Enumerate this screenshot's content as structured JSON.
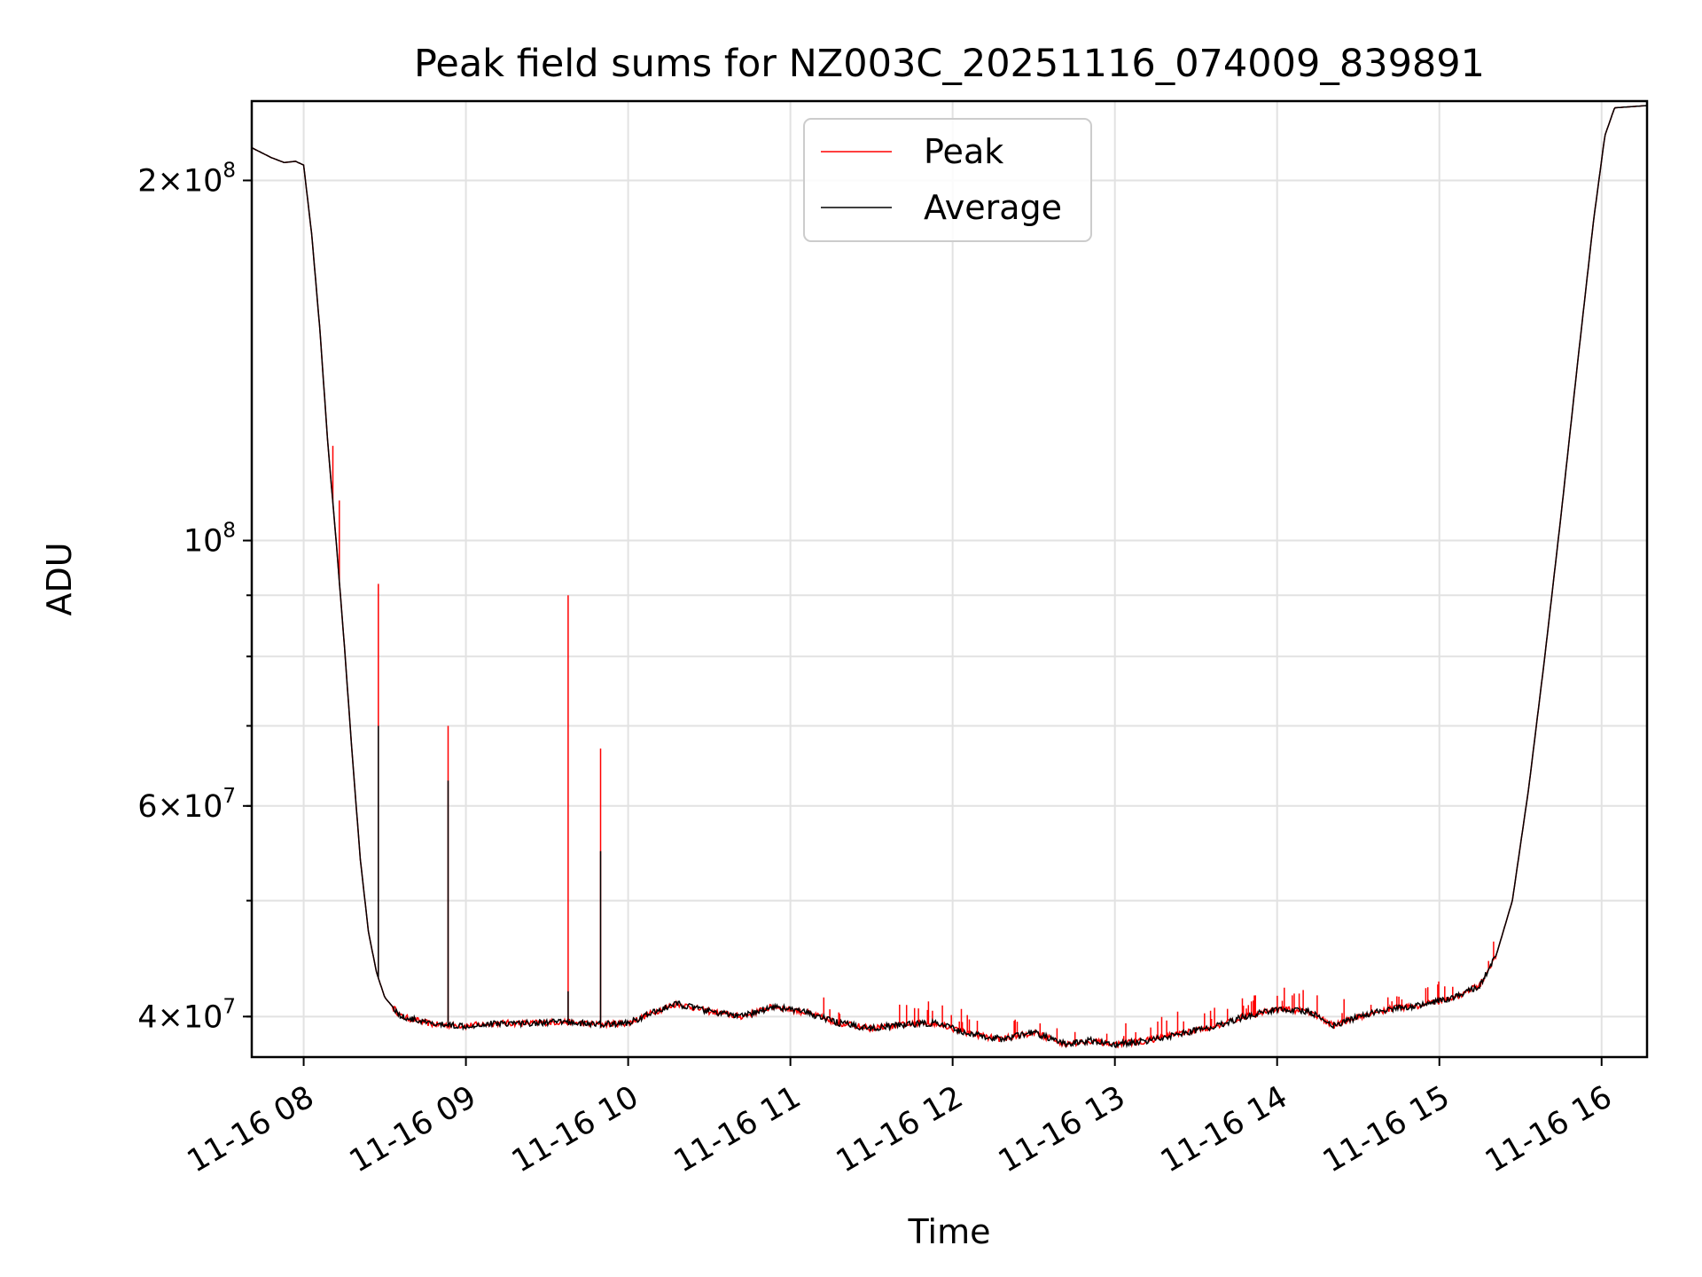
{
  "chart_data": {
    "type": "line",
    "title": "Peak field sums for NZ003C_20251116_074009_839891",
    "xlabel": "Time",
    "ylabel": "ADU",
    "yscale": "log",
    "ylim": [
      37000000,
      233000000
    ],
    "xlim_hours": [
      7.68,
      16.28
    ],
    "grid": true,
    "legend_position": "top-center",
    "x_ticks": [
      {
        "hour": 8,
        "label": "11-16 08"
      },
      {
        "hour": 9,
        "label": "11-16 09"
      },
      {
        "hour": 10,
        "label": "11-16 10"
      },
      {
        "hour": 11,
        "label": "11-16 11"
      },
      {
        "hour": 12,
        "label": "11-16 12"
      },
      {
        "hour": 13,
        "label": "11-16 13"
      },
      {
        "hour": 14,
        "label": "11-16 14"
      },
      {
        "hour": 15,
        "label": "11-16 15"
      },
      {
        "hour": 16,
        "label": "11-16 16"
      }
    ],
    "y_major_ticks": [
      {
        "value": 200000000,
        "mantissa": "2",
        "exponent": "8"
      },
      {
        "value": 100000000,
        "mantissa": "",
        "exponent": "8"
      },
      {
        "value": 60000000,
        "mantissa": "6",
        "exponent": "7"
      },
      {
        "value": 40000000,
        "mantissa": "4",
        "exponent": "7"
      }
    ],
    "y_minor_ticks": [
      40000000,
      50000000,
      60000000,
      70000000,
      80000000,
      90000000,
      100000000,
      200000000
    ],
    "series": [
      {
        "name": "Peak",
        "color": "#ff0000",
        "description": "Peak field sum; follows the average closely with frequent upward spikes",
        "spikes": [
          {
            "hour": 8.18,
            "value": 120000000
          },
          {
            "hour": 8.22,
            "value": 108000000
          },
          {
            "hour": 8.46,
            "value": 92000000
          },
          {
            "hour": 8.89,
            "value": 70000000
          },
          {
            "hour": 9.63,
            "value": 90000000
          },
          {
            "hour": 9.83,
            "value": 67000000
          }
        ]
      },
      {
        "name": "Average",
        "color": "#000000",
        "description": "Average field sum",
        "points": [
          [
            7.68,
            213000000
          ],
          [
            7.8,
            209000000
          ],
          [
            7.88,
            207000000
          ],
          [
            7.95,
            207500000
          ],
          [
            8.0,
            206000000
          ],
          [
            8.05,
            180000000
          ],
          [
            8.1,
            150000000
          ],
          [
            8.15,
            120000000
          ],
          [
            8.2,
            100000000
          ],
          [
            8.25,
            82000000
          ],
          [
            8.3,
            66000000
          ],
          [
            8.35,
            54000000
          ],
          [
            8.4,
            47000000
          ],
          [
            8.45,
            43500000
          ],
          [
            8.5,
            41500000
          ],
          [
            8.6,
            40000000
          ],
          [
            8.8,
            39400000
          ],
          [
            9.0,
            39300000
          ],
          [
            9.2,
            39500000
          ],
          [
            9.4,
            39500000
          ],
          [
            9.6,
            39600000
          ],
          [
            9.8,
            39400000
          ],
          [
            10.0,
            39500000
          ],
          [
            10.15,
            40300000
          ],
          [
            10.3,
            41000000
          ],
          [
            10.5,
            40400000
          ],
          [
            10.7,
            40000000
          ],
          [
            10.9,
            40800000
          ],
          [
            11.1,
            40300000
          ],
          [
            11.3,
            39500000
          ],
          [
            11.5,
            39100000
          ],
          [
            11.7,
            39400000
          ],
          [
            11.9,
            39500000
          ],
          [
            12.1,
            38700000
          ],
          [
            12.3,
            38300000
          ],
          [
            12.5,
            38800000
          ],
          [
            12.7,
            37900000
          ],
          [
            12.85,
            38200000
          ],
          [
            13.0,
            37900000
          ],
          [
            13.2,
            38200000
          ],
          [
            13.4,
            38700000
          ],
          [
            13.6,
            39200000
          ],
          [
            13.8,
            40000000
          ],
          [
            14.0,
            40600000
          ],
          [
            14.2,
            40400000
          ],
          [
            14.35,
            39300000
          ],
          [
            14.5,
            40000000
          ],
          [
            14.7,
            40600000
          ],
          [
            14.9,
            40900000
          ],
          [
            15.1,
            41500000
          ],
          [
            15.25,
            42500000
          ],
          [
            15.35,
            45000000
          ],
          [
            15.45,
            50000000
          ],
          [
            15.55,
            62000000
          ],
          [
            15.65,
            80000000
          ],
          [
            15.75,
            105000000
          ],
          [
            15.85,
            140000000
          ],
          [
            15.95,
            185000000
          ],
          [
            16.02,
            218000000
          ],
          [
            16.08,
            230000000
          ],
          [
            16.28,
            231000000
          ]
        ],
        "spikes": [
          {
            "hour": 8.46,
            "value": 70000000
          },
          {
            "hour": 8.89,
            "value": 63000000
          },
          {
            "hour": 9.63,
            "value": 42000000
          },
          {
            "hour": 9.83,
            "value": 55000000
          }
        ]
      }
    ]
  }
}
